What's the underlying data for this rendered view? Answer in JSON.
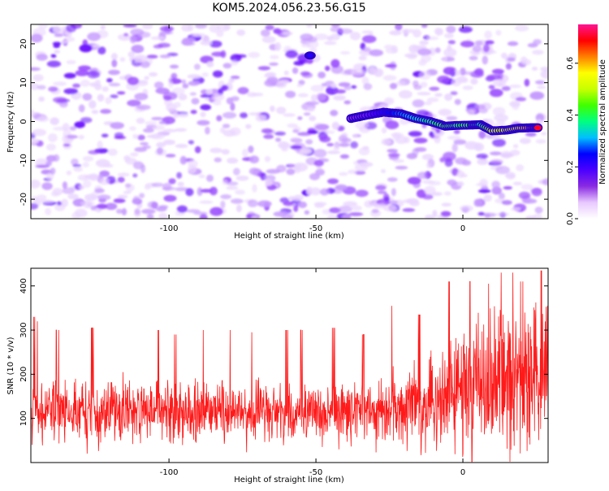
{
  "title": "KOM5.2024.056.23.56.G15",
  "chart_data": [
    {
      "type": "heatmap",
      "xlabel": "Height of straight line (km)",
      "ylabel": "Frequency (Hz)",
      "xlim": [
        -147,
        29
      ],
      "ylim": [
        -25,
        25
      ],
      "x_ticks": [
        -100,
        -50,
        0
      ],
      "y_ticks": [
        -20,
        -10,
        0,
        10,
        20
      ],
      "colorbar": {
        "label": "Normalized spectral amplitude",
        "range": [
          0.0,
          0.75
        ],
        "ticks": [
          "0.0",
          "0.2",
          "0.4",
          "0.6"
        ],
        "colors": [
          "#ffffff",
          "#e8c8ff",
          "#8a2be2",
          "#4b00ff",
          "#0000ff",
          "#00bfff",
          "#00ff80",
          "#40ff00",
          "#c8ff00",
          "#ffff00",
          "#ff8000",
          "#ff0000",
          "#ff1493"
        ]
      },
      "ridge": [
        {
          "x": -38,
          "y": 0.8,
          "amp": 0.12
        },
        {
          "x": -33,
          "y": 1.6,
          "amp": 0.15
        },
        {
          "x": -27,
          "y": 2.4,
          "amp": 0.22
        },
        {
          "x": -21,
          "y": 2.0,
          "amp": 0.28
        },
        {
          "x": -16,
          "y": 0.8,
          "amp": 0.33
        },
        {
          "x": -11,
          "y": 0.0,
          "amp": 0.38
        },
        {
          "x": -6,
          "y": -1.2,
          "amp": 0.42
        },
        {
          "x": -2,
          "y": -1.0,
          "amp": 0.4
        },
        {
          "x": 3,
          "y": -0.9,
          "amp": 0.42
        },
        {
          "x": 6,
          "y": -0.8,
          "amp": 0.36
        },
        {
          "x": 10,
          "y": -2.4,
          "amp": 0.5
        },
        {
          "x": 15,
          "y": -2.2,
          "amp": 0.52
        },
        {
          "x": 19,
          "y": -1.7,
          "amp": 0.55
        },
        {
          "x": 23,
          "y": -1.6,
          "amp": 0.62
        },
        {
          "x": 26,
          "y": -1.6,
          "amp": 0.72
        }
      ],
      "hotspot": {
        "x": -52,
        "y": 17,
        "amp": 0.22
      }
    },
    {
      "type": "line",
      "xlabel": "Height of straight line (km)",
      "ylabel": "SNR (10 * v/v)",
      "xlim": [
        -147,
        29
      ],
      "ylim": [
        0,
        440
      ],
      "x_ticks": [
        -100,
        -50,
        0
      ],
      "y_ticks": [
        100,
        200,
        300,
        400
      ],
      "series": [
        {
          "color": "#ff1a1a",
          "trend": [
            {
              "x": -147,
              "y": 118
            },
            {
              "x": -100,
              "y": 115
            },
            {
              "x": -60,
              "y": 112
            },
            {
              "x": -30,
              "y": 115
            },
            {
              "x": -20,
              "y": 125
            },
            {
              "x": -10,
              "y": 150
            },
            {
              "x": 0,
              "y": 170
            },
            {
              "x": 10,
              "y": 180
            },
            {
              "x": 20,
              "y": 190
            },
            {
              "x": 29,
              "y": 195
            }
          ],
          "spikes": [
            {
              "x": -146,
              "y": 330
            },
            {
              "x": -145,
              "y": 320
            },
            {
              "x": -138,
              "y": 300
            },
            {
              "x": -126,
              "y": 305
            },
            {
              "x": -115,
              "y": 295
            },
            {
              "x": -104,
              "y": 300
            },
            {
              "x": -98,
              "y": 290
            },
            {
              "x": -88,
              "y": 300
            },
            {
              "x": -79,
              "y": 300
            },
            {
              "x": -72,
              "y": 295
            },
            {
              "x": -60,
              "y": 300
            },
            {
              "x": -55,
              "y": 300
            },
            {
              "x": -44,
              "y": 305
            },
            {
              "x": -34,
              "y": 290
            },
            {
              "x": -24,
              "y": 355
            },
            {
              "x": -15,
              "y": 335
            },
            {
              "x": -5,
              "y": 410
            },
            {
              "x": 2,
              "y": 410
            },
            {
              "x": 9,
              "y": 405
            },
            {
              "x": 13,
              "y": 430
            },
            {
              "x": 17,
              "y": 430
            },
            {
              "x": 20,
              "y": 410
            },
            {
              "x": 27,
              "y": 435
            }
          ]
        }
      ]
    }
  ]
}
